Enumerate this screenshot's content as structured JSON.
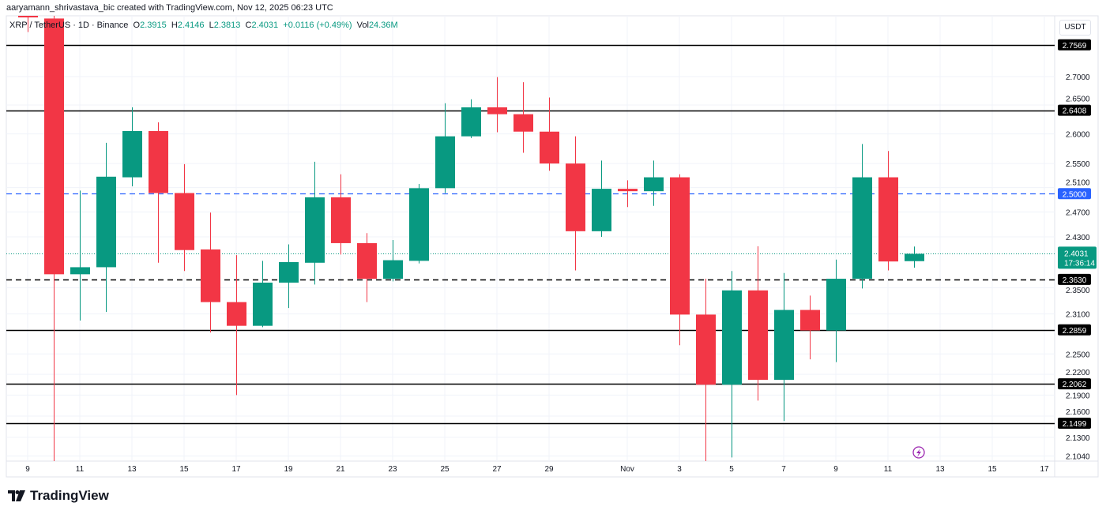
{
  "attribution": "aaryamann_shrivastava_bic created with TradingView.com, Nov 12, 2025 06:23 UTC",
  "legend": {
    "symbol": "XRP / TetherUS",
    "interval": "1D",
    "exchange": "Binance",
    "open_label": "O",
    "open": "2.3915",
    "high_label": "H",
    "high": "2.4146",
    "low_label": "L",
    "low": "2.3813",
    "close_label": "C",
    "close": "2.4031",
    "change": "+0.0116 (+0.49%)",
    "volume_label": "Vol",
    "volume": "24.36M"
  },
  "currency": "USDT",
  "brand": "TradingView",
  "colors": {
    "up": "#089981",
    "down": "#f23645",
    "blue_line": "#2962ff",
    "level": "#000000"
  },
  "chart_data": {
    "type": "candlestick",
    "title": "",
    "xlabel": "",
    "ylabel": "",
    "y_scale": "log",
    "ylim": [
      2.097,
      2.81
    ],
    "grid": true,
    "candles": [
      {
        "date": "2025-10-09",
        "o": 2.86,
        "h": 2.9,
        "l": 2.78,
        "c": 2.807
      },
      {
        "date": "2025-10-10",
        "o": 2.805,
        "h": 2.814,
        "l": 2.09,
        "c": 2.371
      },
      {
        "date": "2025-10-11",
        "o": 2.371,
        "h": 2.505,
        "l": 2.3,
        "c": 2.382
      },
      {
        "date": "2025-10-12",
        "o": 2.382,
        "h": 2.585,
        "l": 2.313,
        "c": 2.528
      },
      {
        "date": "2025-10-13",
        "o": 2.527,
        "h": 2.646,
        "l": 2.512,
        "c": 2.605
      },
      {
        "date": "2025-10-14",
        "o": 2.605,
        "h": 2.62,
        "l": 2.389,
        "c": 2.501
      },
      {
        "date": "2025-10-15",
        "o": 2.501,
        "h": 2.549,
        "l": 2.376,
        "c": 2.409
      },
      {
        "date": "2025-10-16",
        "o": 2.41,
        "h": 2.469,
        "l": 2.282,
        "c": 2.328
      },
      {
        "date": "2025-10-17",
        "o": 2.328,
        "h": 2.401,
        "l": 2.19,
        "c": 2.292
      },
      {
        "date": "2025-10-18",
        "o": 2.292,
        "h": 2.392,
        "l": 2.29,
        "c": 2.358
      },
      {
        "date": "2025-10-19",
        "o": 2.358,
        "h": 2.418,
        "l": 2.319,
        "c": 2.39
      },
      {
        "date": "2025-10-20",
        "o": 2.389,
        "h": 2.553,
        "l": 2.355,
        "c": 2.494
      },
      {
        "date": "2025-10-21",
        "o": 2.494,
        "h": 2.532,
        "l": 2.402,
        "c": 2.42
      },
      {
        "date": "2025-10-22",
        "o": 2.42,
        "h": 2.436,
        "l": 2.328,
        "c": 2.364
      },
      {
        "date": "2025-10-23",
        "o": 2.364,
        "h": 2.425,
        "l": 2.36,
        "c": 2.393
      },
      {
        "date": "2025-10-24",
        "o": 2.392,
        "h": 2.516,
        "l": 2.388,
        "c": 2.509
      },
      {
        "date": "2025-10-25",
        "o": 2.509,
        "h": 2.653,
        "l": 2.501,
        "c": 2.596
      },
      {
        "date": "2025-10-26",
        "o": 2.596,
        "h": 2.66,
        "l": 2.593,
        "c": 2.646
      },
      {
        "date": "2025-10-27",
        "o": 2.646,
        "h": 2.699,
        "l": 2.603,
        "c": 2.634
      },
      {
        "date": "2025-10-28",
        "o": 2.634,
        "h": 2.69,
        "l": 2.568,
        "c": 2.604
      },
      {
        "date": "2025-10-29",
        "o": 2.604,
        "h": 2.663,
        "l": 2.538,
        "c": 2.55
      },
      {
        "date": "2025-10-30",
        "o": 2.55,
        "h": 2.596,
        "l": 2.377,
        "c": 2.439
      },
      {
        "date": "2025-10-31",
        "o": 2.439,
        "h": 2.555,
        "l": 2.43,
        "c": 2.508
      },
      {
        "date": "2025-11-01",
        "o": 2.508,
        "h": 2.522,
        "l": 2.478,
        "c": 2.504
      },
      {
        "date": "2025-11-02",
        "o": 2.504,
        "h": 2.555,
        "l": 2.48,
        "c": 2.527
      },
      {
        "date": "2025-11-03",
        "o": 2.527,
        "h": 2.532,
        "l": 2.263,
        "c": 2.309
      },
      {
        "date": "2025-11-04",
        "o": 2.309,
        "h": 2.364,
        "l": 2.09,
        "c": 2.205
      },
      {
        "date": "2025-11-05",
        "o": 2.205,
        "h": 2.376,
        "l": 2.102,
        "c": 2.346
      },
      {
        "date": "2025-11-06",
        "o": 2.346,
        "h": 2.415,
        "l": 2.182,
        "c": 2.212
      },
      {
        "date": "2025-11-07",
        "o": 2.212,
        "h": 2.373,
        "l": 2.153,
        "c": 2.316
      },
      {
        "date": "2025-11-08",
        "o": 2.316,
        "h": 2.338,
        "l": 2.242,
        "c": 2.285
      },
      {
        "date": "2025-11-09",
        "o": 2.285,
        "h": 2.394,
        "l": 2.238,
        "c": 2.364
      },
      {
        "date": "2025-11-10",
        "o": 2.364,
        "h": 2.583,
        "l": 2.349,
        "c": 2.527
      },
      {
        "date": "2025-11-11",
        "o": 2.527,
        "h": 2.571,
        "l": 2.377,
        "c": 2.391
      },
      {
        "date": "2025-11-12",
        "o": 2.3915,
        "h": 2.4146,
        "l": 2.3813,
        "c": 2.4031
      }
    ],
    "y_ticks": [
      "2.7000",
      "2.6500",
      "2.6000",
      "2.5500",
      "2.5100",
      "2.4700",
      "2.4300",
      "2.3500",
      "2.3100",
      "2.2500",
      "2.2200",
      "2.1900",
      "2.1600",
      "2.1300",
      "2.1040"
    ],
    "x_ticks": [
      {
        "label": "9",
        "date": "2025-10-09"
      },
      {
        "label": "11",
        "date": "2025-10-11"
      },
      {
        "label": "13",
        "date": "2025-10-13"
      },
      {
        "label": "15",
        "date": "2025-10-15"
      },
      {
        "label": "17",
        "date": "2025-10-17"
      },
      {
        "label": "19",
        "date": "2025-10-19"
      },
      {
        "label": "21",
        "date": "2025-10-21"
      },
      {
        "label": "23",
        "date": "2025-10-23"
      },
      {
        "label": "25",
        "date": "2025-10-25"
      },
      {
        "label": "27",
        "date": "2025-10-27"
      },
      {
        "label": "29",
        "date": "2025-10-29"
      },
      {
        "label": "Nov",
        "date": "2025-11-01"
      },
      {
        "label": "3",
        "date": "2025-11-03"
      },
      {
        "label": "5",
        "date": "2025-11-05"
      },
      {
        "label": "7",
        "date": "2025-11-07"
      },
      {
        "label": "9",
        "date": "2025-11-09"
      },
      {
        "label": "11",
        "date": "2025-11-11"
      },
      {
        "label": "13",
        "date": "2025-11-13"
      },
      {
        "label": "15",
        "date": "2025-11-15"
      },
      {
        "label": "17",
        "date": "2025-11-17"
      }
    ],
    "levels": [
      {
        "price": 2.7569,
        "label": "2.7569",
        "style": "solid",
        "color": "#000000"
      },
      {
        "price": 2.6408,
        "label": "2.6408",
        "style": "solid",
        "color": "#000000"
      },
      {
        "price": 2.5,
        "label": "2.5000",
        "style": "dashed",
        "color": "#2962ff"
      },
      {
        "price": 2.363,
        "label": "2.3630",
        "style": "dashed",
        "color": "#000000"
      },
      {
        "price": 2.2859,
        "label": "2.2859",
        "style": "solid",
        "color": "#000000"
      },
      {
        "price": 2.2062,
        "label": "2.2062",
        "style": "solid",
        "color": "#000000"
      },
      {
        "price": 2.1499,
        "label": "2.1499",
        "style": "solid",
        "color": "#000000"
      }
    ],
    "last_price": {
      "price": 2.4031,
      "label": "2.4031",
      "countdown": "17:36:14",
      "color": "#089981"
    }
  }
}
